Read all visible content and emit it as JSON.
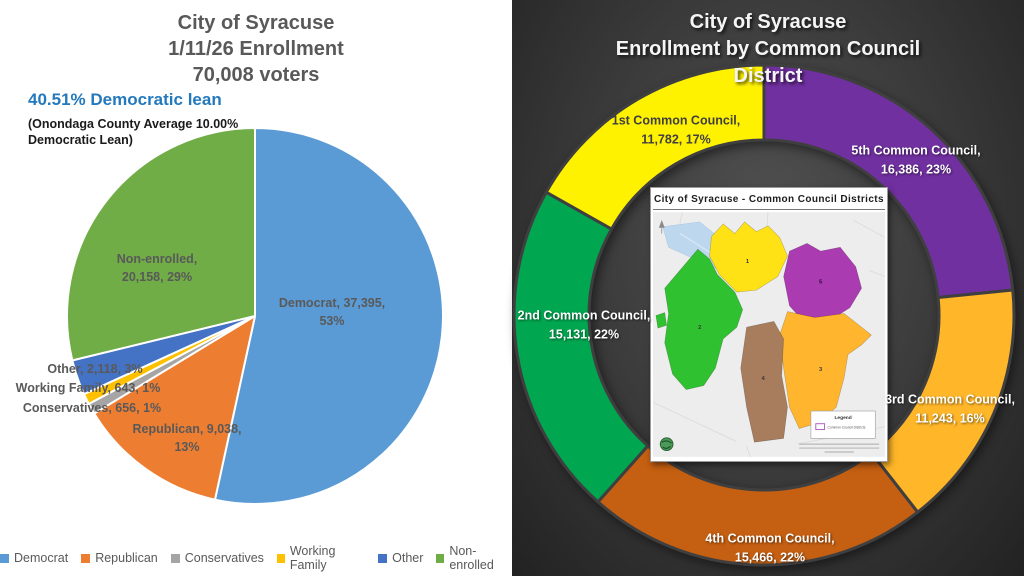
{
  "left_panel": {
    "title_lines": [
      "City of Syracuse",
      "1/11/26 Enrollment",
      "70,008 voters"
    ],
    "lean_headline": "40.51% Democratic lean",
    "lean_note_line1": "(Onondaga County Average 10.00%",
    "lean_note_line2": "Democratic Lean)",
    "slice_labels": {
      "democrat": [
        "Democrat, 37,395,",
        "53%"
      ],
      "non_enrolled": [
        "Non-enrolled,",
        "20,158, 29%"
      ],
      "other": [
        "Other, 2,118, 3%"
      ],
      "working_family": [
        "Working Family, 643, 1%"
      ],
      "conservatives": [
        "Conservatives, 656, 1%"
      ],
      "republican": [
        "Republican, 9,038,",
        "13%"
      ]
    },
    "legend": [
      {
        "label": "Democrat",
        "color": "#5B9BD5"
      },
      {
        "label": "Republican",
        "color": "#ED7D31"
      },
      {
        "label": "Conservatives",
        "color": "#A5A5A5"
      },
      {
        "label": "Working Family",
        "color": "#FFC000"
      },
      {
        "label": "Other",
        "color": "#4472C4"
      },
      {
        "label": "Non-enrolled",
        "color": "#70AD47"
      }
    ]
  },
  "right_panel": {
    "title_lines": [
      "City of Syracuse",
      "Enrollment by Common Council",
      "District"
    ],
    "slice_labels": {
      "c1": [
        "1st Common Council,",
        "11,782, 17%"
      ],
      "c5": [
        "5th Common Council,",
        "16,386, 23%"
      ],
      "c3": [
        "3rd Common Council,",
        "11,243, 16%"
      ],
      "c4": [
        "4th Common Council,",
        "15,466, 22%"
      ],
      "c2": [
        "2nd Common Council,",
        "15,131, 22%"
      ]
    },
    "map": {
      "title": "City of Syracuse - Common Council Districts",
      "legend_title": "Legend",
      "legend_item": "Common Council Districts",
      "district_numbers": [
        "1",
        "2",
        "3",
        "4",
        "5"
      ]
    }
  },
  "chart_data": [
    {
      "type": "pie",
      "title": "City of Syracuse 1/11/26 Enrollment 70,008 voters",
      "subtitle": "40.51% Democratic lean (Onondaga County Average 10.00% Democratic Lean)",
      "total": 70008,
      "categories": [
        "Democrat",
        "Republican",
        "Conservatives",
        "Working Family",
        "Other",
        "Non-enrolled"
      ],
      "values": [
        37395,
        9038,
        656,
        643,
        2118,
        20158
      ],
      "percents": [
        53,
        13,
        1,
        1,
        3,
        29
      ],
      "colors": [
        "#5B9BD5",
        "#ED7D31",
        "#A5A5A5",
        "#FFC000",
        "#4472C4",
        "#70AD47"
      ],
      "start_angle_deg": 0,
      "direction": "clockwise",
      "legend_position": "bottom"
    },
    {
      "type": "donut",
      "title": "City of Syracuse Enrollment by Common Council District",
      "total": 70008,
      "categories": [
        "5th Common Council",
        "3rd Common Council",
        "4th Common Council",
        "2nd Common Council",
        "1st Common Council"
      ],
      "values": [
        16386,
        11243,
        15466,
        15131,
        11782
      ],
      "percents": [
        23,
        16,
        22,
        22,
        17
      ],
      "colors": [
        "#7030A0",
        "#FFB628",
        "#C55F11",
        "#00A650",
        "#FFF200"
      ],
      "start_angle_deg": 0,
      "direction": "clockwise",
      "legend_position": "none"
    }
  ]
}
